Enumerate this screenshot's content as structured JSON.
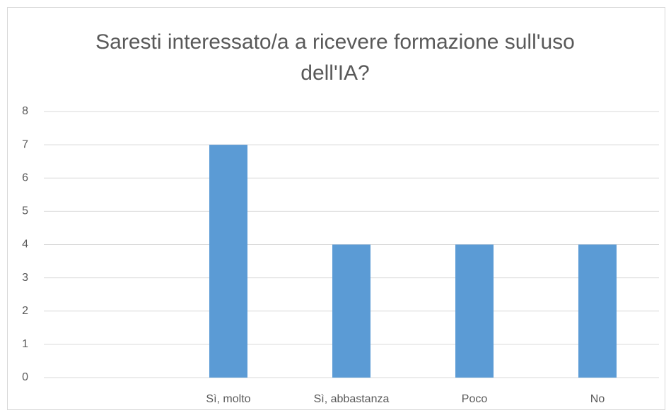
{
  "chart_data": {
    "type": "bar",
    "title": "Saresti interessato/a a ricevere formazione sull'uso dell'IA?",
    "categories": [
      null,
      "Sì, molto",
      "Sì, abbastanza",
      "Poco",
      "No"
    ],
    "values": [
      null,
      7,
      4,
      4,
      4
    ],
    "color": "#5b9bd5",
    "ylim": [
      0,
      8
    ],
    "yticks": [
      0,
      1,
      2,
      3,
      4,
      5,
      6,
      7,
      8
    ],
    "grid": true
  }
}
